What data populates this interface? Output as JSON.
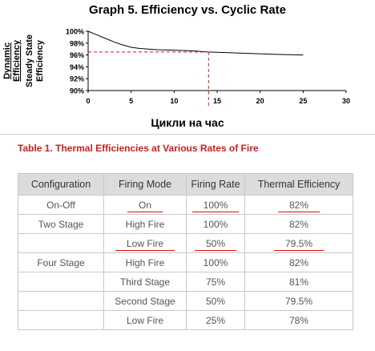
{
  "chart_data": {
    "type": "line",
    "title": "Graph 5. Efficiency vs. Cyclic Rate",
    "xlabel": "Цикли на час",
    "ylabel_lines": [
      "Dynamic",
      "Efficiency",
      "Steady State",
      "Efficiency"
    ],
    "xlim": [
      0,
      30
    ],
    "ylim": [
      90,
      100
    ],
    "xticks": [
      "0",
      "5",
      "10",
      "15",
      "20",
      "25",
      "30"
    ],
    "yticks": [
      "90%",
      "92%",
      "94%",
      "96%",
      "98%",
      "100%"
    ],
    "series": [
      {
        "x": [
          0,
          1,
          2,
          3,
          4,
          5,
          6,
          8,
          10,
          12,
          14,
          16,
          18,
          20,
          22,
          25
        ],
        "y": [
          100,
          99.4,
          98.8,
          98.2,
          97.7,
          97.3,
          97.1,
          96.9,
          96.8,
          96.7,
          96.5,
          96.4,
          96.3,
          96.2,
          96.1,
          96.0
        ]
      }
    ],
    "reference_point": {
      "x": 14,
      "y": 96.5
    },
    "grid": false
  },
  "table": {
    "title": "Table 1. Thermal Efficiencies at Various Rates of Fire",
    "headers": [
      "Configuration",
      "Firing Mode",
      "Firing Rate",
      "Thermal Efficiency"
    ],
    "rows": [
      {
        "config": "On-Off",
        "mode": "On",
        "rate": "100%",
        "eff": "82%"
      },
      {
        "config": "Two Stage",
        "mode": "High Fire",
        "rate": "100%",
        "eff": "82%"
      },
      {
        "config": "",
        "mode": "Low Fire",
        "rate": "50%",
        "eff": "79.5%"
      },
      {
        "config": "Four Stage",
        "mode": "High Fire",
        "rate": "100%",
        "eff": "82%"
      },
      {
        "config": "",
        "mode": "Third Stage",
        "rate": "75%",
        "eff": "81%"
      },
      {
        "config": "",
        "mode": "Second Stage",
        "rate": "50%",
        "eff": "79.5%"
      },
      {
        "config": "",
        "mode": "Low Fire",
        "rate": "25%",
        "eff": "78%"
      }
    ]
  }
}
